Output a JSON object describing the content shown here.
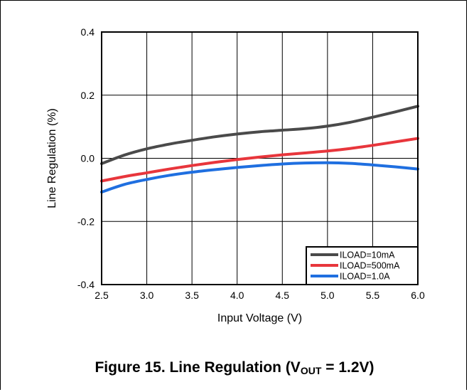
{
  "caption": {
    "prefix": "Figure 15. Line Regulation (V",
    "sub": "OUT",
    "suffix": " = 1.2V)"
  },
  "chart_data": {
    "type": "line",
    "xlabel": "Input Voltage (V)",
    "ylabel": "Line Regulation (%)",
    "xlim": [
      2.5,
      6.0
    ],
    "ylim": [
      -0.4,
      0.4
    ],
    "xticks": [
      "2.5",
      "3.0",
      "3.5",
      "4.0",
      "4.5",
      "5.0",
      "5.5",
      "6.0"
    ],
    "yticks": [
      "-0.4",
      "-0.2",
      "0.0",
      "0.2",
      "0.4"
    ],
    "grid": true,
    "legend_position": "bottom-right",
    "series": [
      {
        "name": "ILOAD=10mA",
        "color": "#4a4a4a",
        "x": [
          2.5,
          2.75,
          3.0,
          3.25,
          3.5,
          3.75,
          4.0,
          4.25,
          4.5,
          4.75,
          5.0,
          5.25,
          5.5,
          5.75,
          6.0
        ],
        "y": [
          -0.017,
          0.01,
          0.03,
          0.045,
          0.057,
          0.068,
          0.077,
          0.084,
          0.089,
          0.094,
          0.102,
          0.114,
          0.13,
          0.147,
          0.165
        ]
      },
      {
        "name": "ILOAD=500mA",
        "color": "#e8363c",
        "x": [
          2.5,
          2.75,
          3.0,
          3.25,
          3.5,
          3.75,
          4.0,
          4.25,
          4.5,
          4.75,
          5.0,
          5.25,
          5.5,
          5.75,
          6.0
        ],
        "y": [
          -0.072,
          -0.058,
          -0.046,
          -0.034,
          -0.023,
          -0.013,
          -0.004,
          0.004,
          0.011,
          0.017,
          0.023,
          0.031,
          0.041,
          0.052,
          0.063
        ]
      },
      {
        "name": "ILOAD=1.0A",
        "color": "#1f6fe0",
        "x": [
          2.5,
          2.75,
          3.0,
          3.25,
          3.5,
          3.75,
          4.0,
          4.25,
          4.5,
          4.75,
          5.0,
          5.25,
          5.5,
          5.75,
          6.0
        ],
        "y": [
          -0.107,
          -0.083,
          -0.067,
          -0.054,
          -0.044,
          -0.036,
          -0.029,
          -0.023,
          -0.018,
          -0.015,
          -0.014,
          -0.016,
          -0.021,
          -0.027,
          -0.034
        ]
      }
    ]
  }
}
